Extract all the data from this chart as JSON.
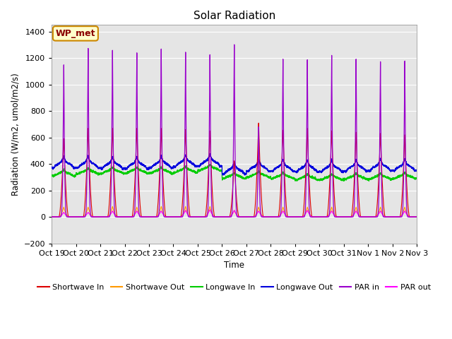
{
  "title": "Solar Radiation",
  "xlabel": "Time",
  "ylabel": "Radiation (W/m2, umol/m2/s)",
  "ylim": [
    -200,
    1450
  ],
  "yticks": [
    -200,
    0,
    200,
    400,
    600,
    800,
    1000,
    1200,
    1400
  ],
  "n_days": 15,
  "xtick_labels": [
    "Oct 19",
    "Oct 20",
    "Oct 21",
    "Oct 22",
    "Oct 23",
    "Oct 24",
    "Oct 25",
    "Oct 26",
    "Oct 27",
    "Oct 28",
    "Oct 29",
    "Oct 30",
    "Oct 31",
    "Nov 1",
    "Nov 2",
    "Nov 3"
  ],
  "background_color": "#e5e5e5",
  "annotation_text": "WP_met",
  "legend_entries": [
    "Shortwave In",
    "Shortwave Out",
    "Longwave In",
    "Longwave Out",
    "PAR in",
    "PAR out"
  ],
  "line_colors": [
    "#dd0000",
    "#ff9900",
    "#00cc00",
    "#0000dd",
    "#9900cc",
    "#ff00ff"
  ],
  "sw_in_peaks": [
    600,
    680,
    680,
    680,
    680,
    670,
    660,
    430,
    720,
    665,
    680,
    660,
    650,
    640,
    630,
    640
  ],
  "sw_out_peaks": [
    75,
    75,
    80,
    75,
    80,
    80,
    80,
    50,
    75,
    75,
    75,
    75,
    75,
    75,
    75,
    75
  ],
  "lw_in_base": [
    310,
    325,
    330,
    330,
    330,
    335,
    350,
    290,
    300,
    290,
    280,
    280,
    285,
    285,
    290,
    295
  ],
  "lw_out_base": [
    370,
    370,
    365,
    365,
    370,
    380,
    385,
    325,
    345,
    345,
    340,
    340,
    345,
    350,
    350,
    350
  ],
  "par_in_peaks": [
    1200,
    1330,
    1315,
    1295,
    1325,
    1300,
    1280,
    1360,
    710,
    1245,
    1240,
    1275,
    1245,
    1225,
    1230,
    1230
  ],
  "par_out_peaks": [
    35,
    35,
    45,
    45,
    45,
    50,
    55,
    50,
    45,
    45,
    50,
    45,
    45,
    45,
    45,
    45
  ]
}
